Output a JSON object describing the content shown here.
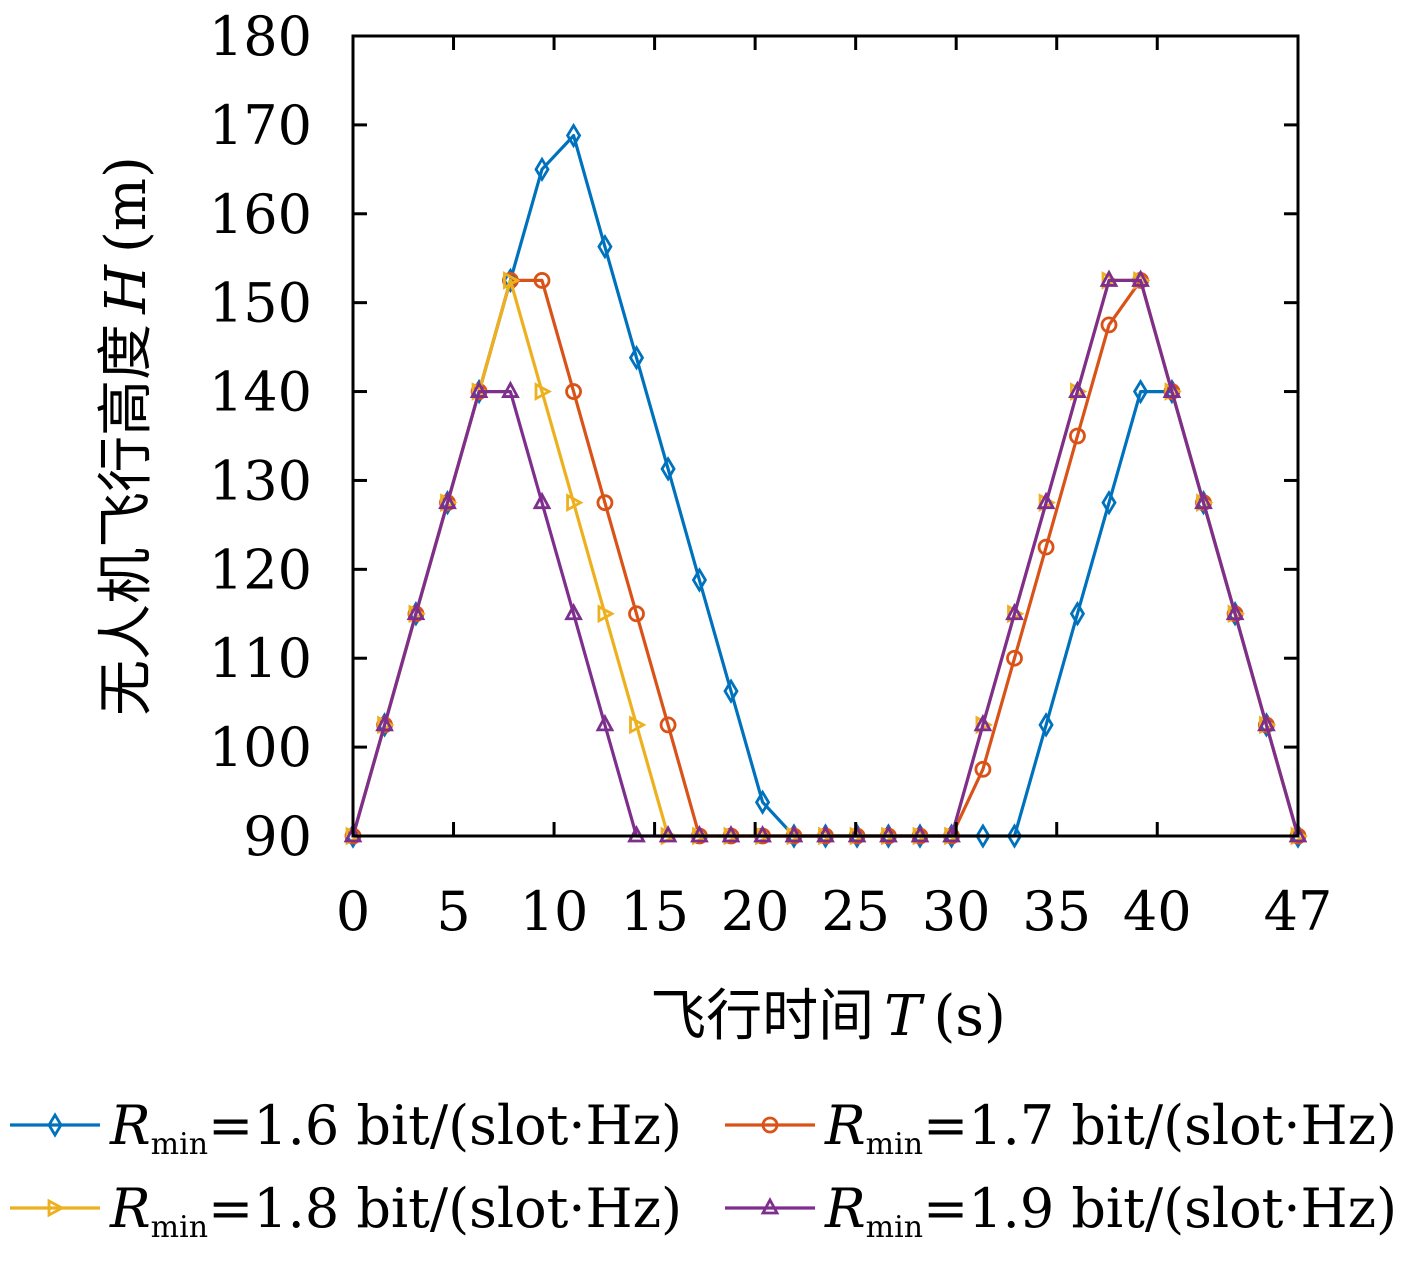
{
  "chart_data": {
    "type": "line",
    "title": "",
    "xlabel": {
      "text": "飞行时间",
      "var": "T",
      "unit": "(s)"
    },
    "ylabel": {
      "text": "无人机飞行高度",
      "var": "H",
      "unit": "(m)"
    },
    "xlim": [
      0,
      47
    ],
    "ylim": [
      90,
      180
    ],
    "xticks": [
      0,
      5,
      10,
      15,
      20,
      25,
      30,
      35,
      40,
      47
    ],
    "yticks": [
      90,
      100,
      110,
      120,
      130,
      140,
      150,
      160,
      170,
      180
    ],
    "grid": false,
    "legend_position": "bottom",
    "x": [
      0,
      1.57,
      3.13,
      4.7,
      6.27,
      7.83,
      9.4,
      10.97,
      12.53,
      14.1,
      15.67,
      17.23,
      18.8,
      20.37,
      21.93,
      23.5,
      25.07,
      26.63,
      28.2,
      29.77,
      31.33,
      32.9,
      34.47,
      36.03,
      37.6,
      39.17,
      40.73,
      42.3,
      43.87,
      45.43,
      47
    ],
    "series": [
      {
        "name": "R_min=1.6 bit/(slot·Hz)",
        "legend": {
          "base": "R",
          "sub": "min",
          "rest": "=1.6 bit/(slot·Hz)"
        },
        "color": "#0072BD",
        "marker": "diamond",
        "values": [
          90,
          102.5,
          115,
          127.5,
          140,
          152.5,
          165,
          168.8,
          156.3,
          143.8,
          131.3,
          118.8,
          106.3,
          93.8,
          90,
          90,
          90,
          90,
          90,
          90,
          90,
          90,
          102.5,
          115,
          127.5,
          140,
          140,
          127.5,
          115,
          102.5,
          90
        ]
      },
      {
        "name": "R_min=1.7 bit/(slot·Hz)",
        "legend": {
          "base": "R",
          "sub": "min",
          "rest": "=1.7 bit/(slot·Hz)"
        },
        "color": "#D95319",
        "marker": "circle",
        "values": [
          90,
          102.5,
          115,
          127.5,
          140,
          152.5,
          152.5,
          140,
          127.5,
          115,
          102.5,
          90,
          90,
          90,
          90,
          90,
          90,
          90,
          90,
          90,
          97.5,
          110,
          122.5,
          135,
          147.5,
          152.5,
          140,
          127.5,
          115,
          102.5,
          90
        ]
      },
      {
        "name": "R_min=1.8 bit/(slot·Hz)",
        "legend": {
          "base": "R",
          "sub": "min",
          "rest": "=1.8 bit/(slot·Hz)"
        },
        "color": "#EDB120",
        "marker": "triangle-right",
        "values": [
          90,
          102.5,
          115,
          127.5,
          140,
          152.5,
          140,
          127.5,
          115,
          102.5,
          90,
          90,
          90,
          90,
          90,
          90,
          90,
          90,
          90,
          90,
          102.5,
          115,
          127.5,
          140,
          152.5,
          152.5,
          140,
          127.5,
          115,
          102.5,
          90
        ]
      },
      {
        "name": "R_min=1.9 bit/(slot·Hz)",
        "legend": {
          "base": "R",
          "sub": "min",
          "rest": "=1.9 bit/(slot·Hz)"
        },
        "color": "#7E2F8E",
        "marker": "triangle-up",
        "values": [
          90,
          102.5,
          115,
          127.5,
          140,
          140,
          127.5,
          115,
          102.5,
          90,
          90,
          90,
          90,
          90,
          90,
          90,
          90,
          90,
          90,
          90,
          102.5,
          115,
          127.5,
          140,
          152.5,
          152.5,
          140,
          127.5,
          115,
          102.5,
          90
        ]
      }
    ]
  }
}
